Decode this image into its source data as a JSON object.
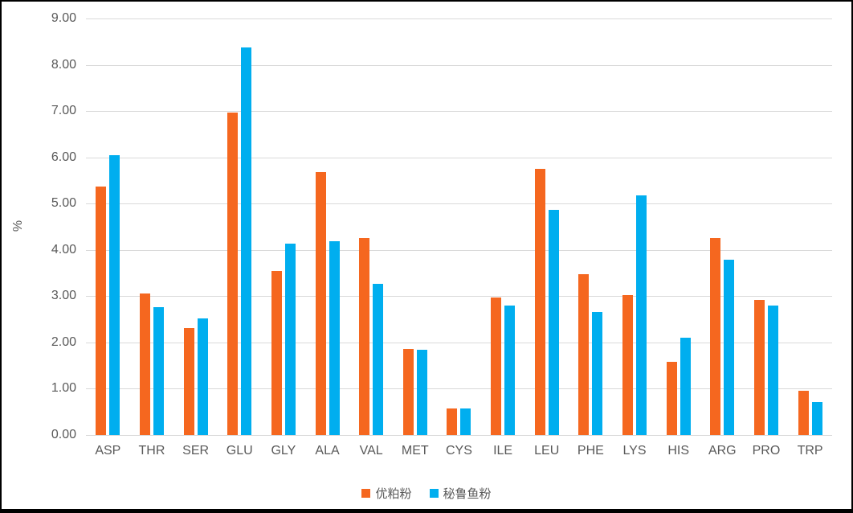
{
  "chart_data": {
    "type": "bar",
    "title": "",
    "xlabel": "",
    "ylabel": "%",
    "ylim": [
      0,
      9
    ],
    "ytick_step": 1,
    "ytick_labels": [
      "0.00",
      "1.00",
      "2.00",
      "3.00",
      "4.00",
      "5.00",
      "6.00",
      "7.00",
      "8.00",
      "9.00"
    ],
    "grid": true,
    "legend_position": "bottom",
    "categories": [
      "ASP",
      "THR",
      "SER",
      "GLU",
      "GLY",
      "ALA",
      "VAL",
      "MET",
      "CYS",
      "ILE",
      "LEU",
      "PHE",
      "LYS",
      "HIS",
      "ARG",
      "PRO",
      "TRP"
    ],
    "series": [
      {
        "name": "优粕粉",
        "color": "#F5671F",
        "values": [
          5.37,
          3.06,
          2.31,
          6.97,
          3.55,
          5.68,
          4.26,
          1.86,
          0.57,
          2.98,
          5.75,
          3.47,
          3.02,
          1.58,
          4.26,
          2.92,
          0.96
        ]
      },
      {
        "name": "秘鲁鱼粉",
        "color": "#00AEEF",
        "values": [
          6.04,
          2.76,
          2.52,
          8.37,
          4.14,
          4.19,
          3.27,
          1.85,
          0.57,
          2.79,
          4.86,
          2.66,
          5.17,
          2.1,
          3.79,
          2.8,
          0.72
        ]
      }
    ]
  },
  "style_colors": {
    "gridline": "#d9d9d9",
    "axis_text": "#595959",
    "frame_border": "#000000"
  }
}
